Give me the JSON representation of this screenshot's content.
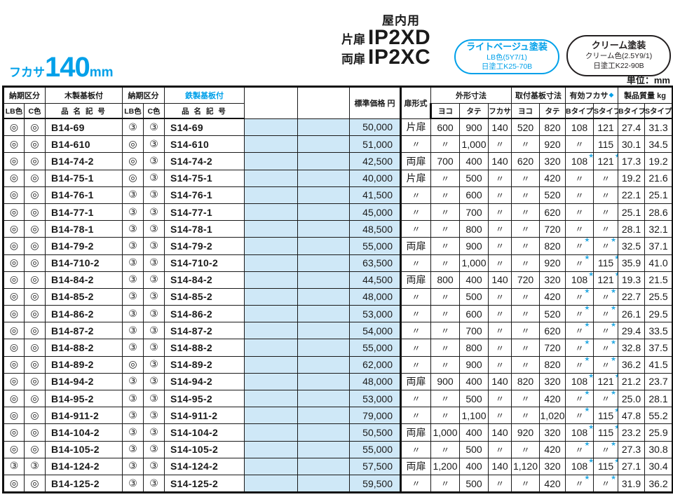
{
  "colors": {
    "accent": "#00a0e9",
    "cell_fill": "#cfe8f7",
    "star": "#2aabe4"
  },
  "header": {
    "depth_label": "フカサ",
    "depth_value": "140",
    "depth_unit": "mm",
    "usage": "屋内用",
    "models": [
      {
        "door_label": "片扉",
        "code": "IP2XD"
      },
      {
        "door_label": "両扉",
        "code": "IP2XC"
      }
    ],
    "badges": [
      {
        "title": "ライトベージュ塗装",
        "line2": "LB色(5Y7/1)",
        "line3": "日塗工K25-70B"
      },
      {
        "title": "クリーム塗装",
        "line2": "クリーム色(2.5Y9/1)",
        "line3": "日塗工K22-90B"
      }
    ],
    "unit_note": "単位：mm"
  },
  "table": {
    "group_headers": {
      "delivery": "納期区分",
      "wood": "木製基板付",
      "steel": "鉄製基板付",
      "price": "標準価格 円",
      "door": "扉形式",
      "outer": "外形寸法",
      "mount": "取付基板寸法",
      "effective": "有効フカサ",
      "effective_mark": "◆",
      "weight": "製品質量 kg"
    },
    "sub_headers": {
      "lb": "LB色",
      "c": "C色",
      "name": "品 名 記 号",
      "yoko": "ヨコ",
      "tate": "タテ",
      "fukasa": "フカサ",
      "btype": "Bタイプ",
      "stype": "Sタイプ"
    },
    "rows": [
      [
        "◎",
        "◎",
        "B14-69",
        "③",
        "③",
        "S14-69",
        "",
        "",
        "50,000",
        "片扉",
        "600",
        "900",
        "140",
        "520",
        "820",
        "108",
        "121",
        "27.4",
        "31.3"
      ],
      [
        "◎",
        "◎",
        "B14-610",
        "◎",
        "③",
        "S14-610",
        "",
        "",
        "51,000",
        "〃",
        "〃",
        "1,000",
        "〃",
        "〃",
        "920",
        "〃",
        "115",
        "30.1",
        "34.5"
      ],
      [
        "◎",
        "◎",
        "B14-74-2",
        "◎",
        "③",
        "S14-74-2",
        "",
        "",
        "42,500",
        "両扉",
        "700",
        "400",
        "140",
        "620",
        "320",
        "108★",
        "121★",
        "17.3",
        "19.2"
      ],
      [
        "◎",
        "◎",
        "B14-75-1",
        "◎",
        "③",
        "S14-75-1",
        "",
        "",
        "40,000",
        "片扉",
        "〃",
        "500",
        "〃",
        "〃",
        "420",
        "〃",
        "〃",
        "19.2",
        "21.6"
      ],
      [
        "◎",
        "◎",
        "B14-76-1",
        "③",
        "③",
        "S14-76-1",
        "",
        "",
        "41,500",
        "〃",
        "〃",
        "600",
        "〃",
        "〃",
        "520",
        "〃",
        "〃",
        "22.1",
        "25.1"
      ],
      [
        "◎",
        "◎",
        "B14-77-1",
        "③",
        "③",
        "S14-77-1",
        "",
        "",
        "45,000",
        "〃",
        "〃",
        "700",
        "〃",
        "〃",
        "620",
        "〃",
        "〃",
        "25.1",
        "28.6"
      ],
      [
        "◎",
        "◎",
        "B14-78-1",
        "③",
        "③",
        "S14-78-1",
        "",
        "",
        "48,500",
        "〃",
        "〃",
        "800",
        "〃",
        "〃",
        "720",
        "〃",
        "〃",
        "28.1",
        "32.1"
      ],
      [
        "◎",
        "◎",
        "B14-79-2",
        "③",
        "③",
        "S14-79-2",
        "",
        "",
        "55,000",
        "両扉",
        "〃",
        "900",
        "〃",
        "〃",
        "820",
        "〃★",
        "〃★",
        "32.5",
        "37.1"
      ],
      [
        "◎",
        "◎",
        "B14-710-2",
        "③",
        "③",
        "S14-710-2",
        "",
        "",
        "63,500",
        "〃",
        "〃",
        "1,000",
        "〃",
        "〃",
        "920",
        "〃★",
        "115★",
        "35.9",
        "41.0"
      ],
      [
        "◎",
        "◎",
        "B14-84-2",
        "③",
        "③",
        "S14-84-2",
        "",
        "",
        "44,500",
        "両扉",
        "800",
        "400",
        "140",
        "720",
        "320",
        "108★",
        "121★",
        "19.3",
        "21.5"
      ],
      [
        "◎",
        "◎",
        "B14-85-2",
        "③",
        "③",
        "S14-85-2",
        "",
        "",
        "48,000",
        "〃",
        "〃",
        "500",
        "〃",
        "〃",
        "420",
        "〃★",
        "〃★",
        "22.7",
        "25.5"
      ],
      [
        "◎",
        "◎",
        "B14-86-2",
        "③",
        "③",
        "S14-86-2",
        "",
        "",
        "53,000",
        "〃",
        "〃",
        "600",
        "〃",
        "〃",
        "520",
        "〃★",
        "〃★",
        "26.1",
        "29.5"
      ],
      [
        "◎",
        "◎",
        "B14-87-2",
        "③",
        "③",
        "S14-87-2",
        "",
        "",
        "54,000",
        "〃",
        "〃",
        "700",
        "〃",
        "〃",
        "620",
        "〃★",
        "〃★",
        "29.4",
        "33.5"
      ],
      [
        "◎",
        "◎",
        "B14-88-2",
        "③",
        "③",
        "S14-88-2",
        "",
        "",
        "55,000",
        "〃",
        "〃",
        "800",
        "〃",
        "〃",
        "720",
        "〃★",
        "〃★",
        "32.8",
        "37.5"
      ],
      [
        "◎",
        "◎",
        "B14-89-2",
        "◎",
        "③",
        "S14-89-2",
        "",
        "",
        "62,000",
        "〃",
        "〃",
        "900",
        "〃",
        "〃",
        "820",
        "〃★",
        "〃★",
        "36.2",
        "41.5"
      ],
      [
        "◎",
        "◎",
        "B14-94-2",
        "③",
        "③",
        "S14-94-2",
        "",
        "",
        "48,000",
        "両扉",
        "900",
        "400",
        "140",
        "820",
        "320",
        "108★",
        "121★",
        "21.2",
        "23.7"
      ],
      [
        "◎",
        "◎",
        "B14-95-2",
        "③",
        "③",
        "S14-95-2",
        "",
        "",
        "53,000",
        "〃",
        "〃",
        "500",
        "〃",
        "〃",
        "420",
        "〃★",
        "〃★",
        "25.0",
        "28.1"
      ],
      [
        "◎",
        "◎",
        "B14-911-2",
        "③",
        "③",
        "S14-911-2",
        "",
        "",
        "79,000",
        "〃",
        "〃",
        "1,100",
        "〃",
        "〃",
        "1,020",
        "〃★",
        "115★",
        "47.8",
        "55.2"
      ],
      [
        "◎",
        "◎",
        "B14-104-2",
        "③",
        "③",
        "S14-104-2",
        "",
        "",
        "50,500",
        "両扉",
        "1,000",
        "400",
        "140",
        "920",
        "320",
        "108★",
        "115★",
        "23.2",
        "25.9"
      ],
      [
        "◎",
        "◎",
        "B14-105-2",
        "③",
        "③",
        "S14-105-2",
        "",
        "",
        "55,000",
        "〃",
        "〃",
        "500",
        "〃",
        "〃",
        "420",
        "〃★",
        "〃★",
        "27.3",
        "30.8"
      ],
      [
        "③",
        "③",
        "B14-124-2",
        "③",
        "③",
        "S14-124-2",
        "",
        "",
        "57,500",
        "両扉",
        "1,200",
        "400",
        "140",
        "1,120",
        "320",
        "108★",
        "115★",
        "27.1",
        "30.4"
      ],
      [
        "◎",
        "◎",
        "B14-125-2",
        "③",
        "③",
        "S14-125-2",
        "",
        "",
        "59,500",
        "〃",
        "〃",
        "500",
        "〃",
        "〃",
        "420",
        "〃★",
        "〃★",
        "31.9",
        "36.2"
      ]
    ]
  }
}
